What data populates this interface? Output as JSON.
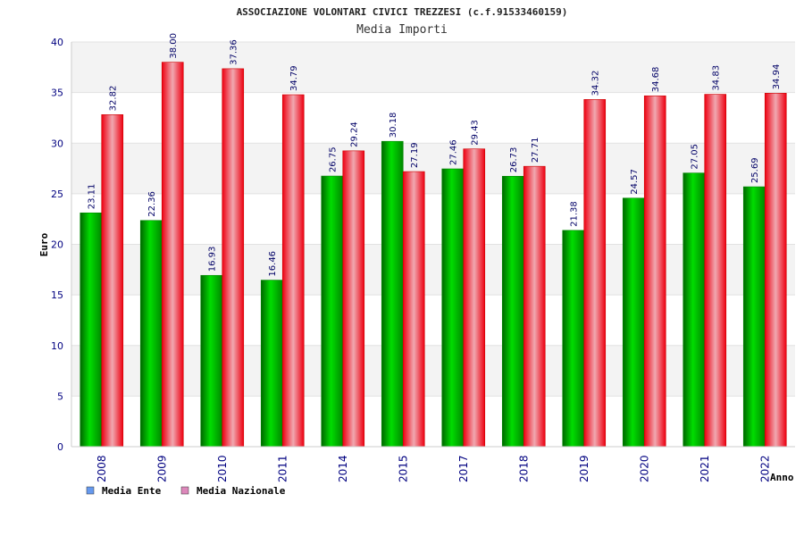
{
  "chart_data": {
    "type": "bar",
    "title": "ASSOCIAZIONE VOLONTARI CIVICI TREZZESI (c.f.91533460159)",
    "subtitle": "Media Importi",
    "xlabel": "Anno",
    "ylabel": "Euro",
    "ylim": [
      0,
      40
    ],
    "yticks": [
      "0",
      "5",
      "10",
      "15",
      "20",
      "25",
      "30",
      "35",
      "40"
    ],
    "grid": "horizontal-bands",
    "legend_position": "bottom-left",
    "categories": [
      "2008",
      "2009",
      "2010",
      "2011",
      "2014",
      "2015",
      "2017",
      "2018",
      "2019",
      "2020",
      "2021",
      "2022"
    ],
    "series": [
      {
        "name": "Media Ente",
        "color": "#00aa00",
        "legend_color": "#6699ee",
        "values": [
          23.11,
          22.36,
          16.93,
          16.46,
          26.75,
          30.18,
          27.46,
          26.73,
          21.38,
          24.57,
          27.05,
          25.69
        ],
        "labels": [
          "23.11",
          "22.36",
          "16.93",
          "16.46",
          "26.75",
          "30.18",
          "27.46",
          "26.73",
          "21.38",
          "24.57",
          "27.05",
          "25.69"
        ]
      },
      {
        "name": "Media Nazionale",
        "color": "#ee0000",
        "legend_color": "#dd88bb",
        "values": [
          32.82,
          38.0,
          37.36,
          34.79,
          29.24,
          27.19,
          29.43,
          27.71,
          34.32,
          34.68,
          34.83,
          34.94
        ],
        "labels": [
          "32.82",
          "38.00",
          "37.36",
          "34.79",
          "29.24",
          "27.19",
          "29.43",
          "27.71",
          "34.32",
          "34.68",
          "34.83",
          "34.94"
        ]
      }
    ]
  }
}
